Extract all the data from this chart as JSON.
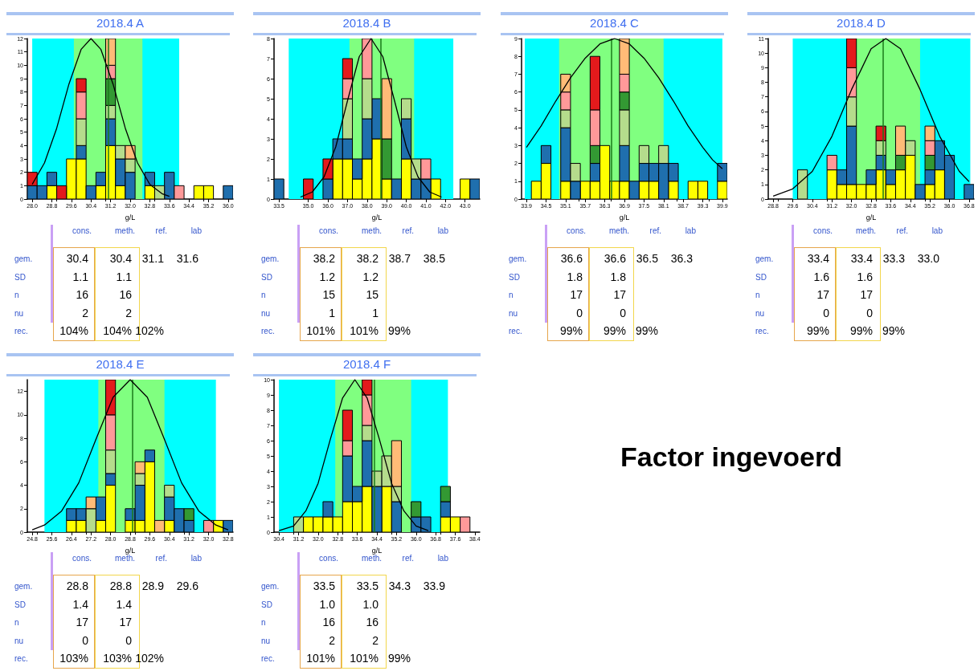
{
  "chart_data": [
    {
      "type": "bar",
      "title": "2018.4 A",
      "xlabel": "g/L",
      "stacked": true,
      "x": [
        28.0,
        28.4,
        28.8,
        29.2,
        29.6,
        30.0,
        30.4,
        30.8,
        31.2,
        31.6,
        32.0,
        32.4,
        32.8,
        33.2,
        33.6,
        34.0,
        34.4,
        34.8,
        35.2,
        35.6,
        36.0
      ],
      "xlim": [
        27.8,
        36.2
      ],
      "xticks": [
        {
          "value": 28,
          "label": "28.0"
        },
        28.8,
        29.6,
        30.4,
        31.2,
        {
          "value": 32,
          "label": "32.0"
        },
        32.8,
        33.6,
        34.4,
        35.2,
        {
          "value": 36,
          "label": "36.0"
        }
      ],
      "ylim": [
        0,
        12
      ],
      "yticks": [
        0,
        1,
        2,
        3,
        4,
        5,
        6,
        7,
        8,
        9,
        10,
        11,
        12
      ],
      "series": [
        {
          "color": "#ffff00",
          "values": [
            0,
            0,
            1,
            0,
            3,
            3,
            0,
            1,
            4,
            1,
            0,
            0,
            1,
            0,
            0,
            0,
            0,
            1,
            1,
            0,
            0
          ]
        },
        {
          "color": "#1f6fae",
          "values": [
            1,
            1,
            1,
            0,
            0,
            1,
            1,
            1,
            2,
            2,
            2,
            0,
            1,
            0,
            2,
            0,
            0,
            0,
            0,
            0,
            1
          ]
        },
        {
          "color": "#b5dc8c",
          "values": [
            0,
            0,
            0,
            0,
            0,
            2,
            0,
            0,
            1,
            1,
            1,
            0,
            0,
            1,
            0,
            0,
            0,
            0,
            0,
            0,
            0
          ]
        },
        {
          "color": "#339933",
          "values": [
            0,
            0,
            0,
            0,
            0,
            0,
            0,
            0,
            2,
            0,
            0,
            0,
            0,
            0,
            0,
            0,
            0,
            0,
            0,
            0,
            0
          ]
        },
        {
          "color": "#ff9999",
          "values": [
            0,
            0,
            0,
            0,
            0,
            2,
            0,
            0,
            1,
            0,
            0,
            0,
            0,
            0,
            0,
            1,
            0,
            0,
            0,
            0,
            0
          ]
        },
        {
          "color": "#e31a1c",
          "values": [
            1,
            0,
            0,
            1,
            0,
            1,
            0,
            0,
            0,
            0,
            0,
            0,
            0,
            0,
            0,
            0,
            0,
            0,
            0,
            0,
            0
          ]
        },
        {
          "color": "#ffbb77",
          "values": [
            0,
            0,
            0,
            0,
            0,
            0,
            0,
            0,
            2,
            0,
            1,
            0,
            0,
            0,
            0,
            0,
            0,
            0,
            0,
            0,
            0
          ]
        },
        {
          "type": "line",
          "color": "#000000",
          "marker": "none",
          "x": [
            28.0,
            28.5,
            29.0,
            29.5,
            30.0,
            30.4,
            30.8,
            31.3,
            31.8,
            32.3,
            32.8,
            33.3,
            33.6
          ],
          "values": [
            1.1,
            2.7,
            5.3,
            8.6,
            11.2,
            12,
            11.2,
            8.6,
            5.3,
            2.7,
            1.1,
            0.4,
            0.2
          ]
        }
      ],
      "bands": [
        {
          "axis": "x",
          "from": 28.0,
          "to": 34.0,
          "color": "#00ffff"
        },
        {
          "axis": "x",
          "from": 29.7,
          "to": 32.5,
          "color": "#80ff80"
        }
      ],
      "ref_lines": [
        {
          "axis": "x",
          "value": 31.1,
          "color": "#1a7a1a"
        }
      ],
      "annotations": [
        "cons. meth. ref. lab",
        "gem. 30.4 30.4 31.1 31.6",
        "SD 1.1 1.1",
        "n 16 16",
        "nu 2 2",
        "rec. 104% 104% 102%"
      ]
    },
    {
      "type": "bar",
      "title": "2018.4 B",
      "xlabel": "g/L",
      "stacked": true,
      "x": [
        33.5,
        34.0,
        34.5,
        35.0,
        35.5,
        36.0,
        36.5,
        37.0,
        37.5,
        38.0,
        38.5,
        39.0,
        39.5,
        40.0,
        40.5,
        41.0,
        41.5,
        42.0,
        42.5,
        43.0,
        43.5
      ],
      "xlim": [
        33.25,
        43.75
      ],
      "xticks": [
        33.5,
        {
          "value": 35,
          "label": "35.0"
        },
        {
          "value": 36,
          "label": "36.0"
        },
        {
          "value": 37,
          "label": "37.0"
        },
        {
          "value": 38,
          "label": "38.0"
        },
        {
          "value": 39,
          "label": "39.0"
        },
        {
          "value": 40,
          "label": "40.0"
        },
        {
          "value": 41,
          "label": "41.0"
        },
        {
          "value": 42,
          "label": "42.0"
        },
        {
          "value": 43,
          "label": "43.0"
        }
      ],
      "ylim": [
        0,
        8
      ],
      "yticks": [
        0,
        1,
        2,
        3,
        4,
        5,
        6,
        7,
        8
      ],
      "series": [
        {
          "color": "#ffff00",
          "values": [
            0,
            0,
            0,
            0,
            0,
            0,
            2,
            2,
            1,
            2,
            3,
            1,
            0,
            2,
            0,
            0,
            1,
            0,
            0,
            1,
            0
          ]
        },
        {
          "color": "#1f6fae",
          "values": [
            1,
            0,
            0,
            0,
            0,
            1,
            1,
            1,
            1,
            2,
            2,
            0,
            1,
            2,
            1,
            1,
            0,
            0,
            0,
            0,
            1
          ]
        },
        {
          "color": "#b5dc8c",
          "values": [
            0,
            0,
            0,
            0,
            0,
            0,
            0,
            2,
            0,
            2,
            0,
            0,
            0,
            1,
            1,
            0,
            0,
            0,
            0,
            0,
            0
          ]
        },
        {
          "color": "#339933",
          "values": [
            0,
            0,
            0,
            0,
            0,
            0,
            0,
            0,
            0,
            0,
            0,
            2,
            0,
            0,
            0,
            0,
            0,
            0,
            0,
            0,
            0
          ]
        },
        {
          "color": "#ff9999",
          "values": [
            0,
            0,
            0,
            0,
            0,
            0,
            0,
            1,
            0,
            2,
            0,
            0,
            0,
            0,
            0,
            1,
            0,
            0,
            0,
            0,
            0
          ]
        },
        {
          "color": "#e31a1c",
          "values": [
            0,
            0,
            0,
            1,
            0,
            1,
            0,
            1,
            0,
            0,
            0,
            0,
            0,
            0,
            0,
            0,
            0,
            0,
            0,
            0,
            0
          ]
        },
        {
          "color": "#ffbb77",
          "values": [
            0,
            0,
            0,
            0,
            0,
            0,
            0,
            0,
            0,
            0,
            0,
            3,
            0,
            0,
            0,
            0,
            0,
            0,
            0,
            0,
            0
          ]
        },
        {
          "type": "line",
          "color": "#000000",
          "marker": "none",
          "x": [
            34.6,
            35.2,
            35.8,
            36.4,
            37.0,
            37.6,
            38.2,
            38.8,
            39.4,
            40.0,
            40.6,
            41.2,
            41.8
          ],
          "values": [
            0.1,
            0.35,
            1.1,
            2.6,
            4.9,
            7.1,
            8,
            7.1,
            4.9,
            2.6,
            1.1,
            0.35,
            0.1
          ]
        }
      ],
      "bands": [
        {
          "axis": "x",
          "from": 34.0,
          "to": 42.4,
          "color": "#00ffff"
        },
        {
          "axis": "x",
          "from": 37.1,
          "to": 40.4,
          "color": "#80ff80"
        }
      ],
      "ref_lines": [
        {
          "axis": "x",
          "value": 38.7,
          "color": "#1a7a1a"
        }
      ],
      "annotations": [
        "cons. meth. ref. lab",
        "gem. 38.2 38.2 38.7 38.5",
        "SD 1.2 1.2",
        "n 15 15",
        "nu 1 1",
        "rec. 101% 101% 99%"
      ]
    },
    {
      "type": "bar",
      "title": "2018.4 C",
      "xlabel": "g/L",
      "stacked": true,
      "x": [
        33.9,
        34.2,
        34.5,
        34.8,
        35.1,
        35.4,
        35.7,
        36.0,
        36.3,
        36.6,
        36.9,
        37.2,
        37.5,
        37.8,
        38.1,
        38.4,
        38.7,
        39.0,
        39.3,
        39.6,
        39.9
      ],
      "xlim": [
        33.75,
        40.05
      ],
      "xticks": [
        33.9,
        34.5,
        35.1,
        35.7,
        36.3,
        36.9,
        37.5,
        38.1,
        38.7,
        39.3,
        39.9
      ],
      "ylim": [
        0,
        9
      ],
      "yticks": [
        0,
        1,
        2,
        3,
        4,
        5,
        6,
        7,
        8,
        9
      ],
      "series": [
        {
          "color": "#ffff00",
          "values": [
            0,
            1,
            2,
            0,
            1,
            0,
            1,
            1,
            3,
            1,
            1,
            0,
            1,
            1,
            0,
            1,
            0,
            1,
            1,
            0,
            1
          ]
        },
        {
          "color": "#1f6fae",
          "values": [
            0,
            0,
            1,
            0,
            3,
            1,
            0,
            1,
            0,
            0,
            2,
            1,
            1,
            1,
            2,
            1,
            0,
            0,
            0,
            0,
            1
          ]
        },
        {
          "color": "#b5dc8c",
          "values": [
            0,
            0,
            0,
            0,
            1,
            1,
            0,
            0,
            0,
            0,
            2,
            0,
            1,
            0,
            1,
            0,
            0,
            0,
            0,
            0,
            0
          ]
        },
        {
          "color": "#339933",
          "values": [
            0,
            0,
            0,
            0,
            0,
            0,
            0,
            1,
            0,
            0,
            1,
            0,
            0,
            0,
            0,
            0,
            0,
            0,
            0,
            0,
            0
          ]
        },
        {
          "color": "#ff9999",
          "values": [
            0,
            0,
            0,
            0,
            1,
            0,
            0,
            2,
            0,
            0,
            1,
            0,
            0,
            0,
            0,
            0,
            0,
            0,
            0,
            0,
            0
          ]
        },
        {
          "color": "#e31a1c",
          "values": [
            0,
            0,
            0,
            0,
            0,
            0,
            0,
            3,
            0,
            0,
            0,
            0,
            0,
            0,
            0,
            0,
            0,
            0,
            0,
            0,
            0
          ]
        },
        {
          "color": "#ffbb77",
          "values": [
            0,
            0,
            0,
            0,
            1,
            0,
            0,
            0,
            0,
            0,
            2,
            0,
            0,
            0,
            0,
            0,
            0,
            0,
            0,
            0,
            0
          ]
        },
        {
          "type": "line",
          "color": "#000000",
          "marker": "none",
          "x": [
            33.9,
            34.35,
            34.8,
            35.25,
            35.7,
            36.15,
            36.6,
            37.05,
            37.5,
            37.95,
            38.4,
            38.85,
            39.3,
            39.6,
            39.9
          ],
          "values": [
            2.9,
            4.1,
            5.5,
            6.8,
            7.9,
            8.7,
            9,
            8.7,
            7.9,
            6.8,
            5.5,
            4.1,
            2.9,
            2.2,
            1.7
          ]
        }
      ],
      "bands": [
        {
          "axis": "x",
          "from": 33.85,
          "to": 39.9,
          "color": "#00ffff"
        },
        {
          "axis": "x",
          "from": 34.9,
          "to": 38.1,
          "color": "#80ff80"
        }
      ],
      "ref_lines": [
        {
          "axis": "x",
          "value": 36.5,
          "color": "#1a7a1a"
        }
      ],
      "annotations": [
        "cons. meth. ref. lab",
        "gem. 36.6 36.6 36.5 36.3",
        "SD 1.8 1.8",
        "n 17 17",
        "nu 0 0",
        "rec. 99% 99% 99%"
      ]
    },
    {
      "type": "bar",
      "title": "2018.4 D",
      "xlabel": "g/L",
      "stacked": true,
      "x": [
        28.8,
        29.2,
        29.6,
        30.0,
        30.4,
        30.8,
        31.2,
        31.6,
        32.0,
        32.4,
        32.8,
        33.2,
        33.6,
        34.0,
        34.4,
        34.8,
        35.2,
        35.6,
        36.0,
        36.4,
        36.8
      ],
      "xlim": [
        28.6,
        37.0
      ],
      "xticks": [
        28.8,
        29.6,
        30.4,
        31.2,
        {
          "value": 32,
          "label": "32.0"
        },
        32.8,
        33.6,
        34.4,
        35.2,
        {
          "value": 36,
          "label": "36.0"
        },
        36.8
      ],
      "ylim": [
        0,
        11
      ],
      "yticks": [
        0,
        1,
        2,
        3,
        4,
        5,
        6,
        7,
        8,
        9,
        10,
        11
      ],
      "series": [
        {
          "color": "#ffff00",
          "values": [
            0,
            0,
            0,
            0,
            0,
            0,
            2,
            1,
            1,
            1,
            1,
            2,
            1,
            2,
            3,
            0,
            1,
            2,
            0,
            0,
            0
          ]
        },
        {
          "color": "#1f6fae",
          "values": [
            0,
            0,
            0,
            0,
            0,
            0,
            0,
            1,
            4,
            0,
            1,
            1,
            1,
            0,
            0,
            1,
            1,
            2,
            3,
            0,
            1
          ]
        },
        {
          "color": "#b5dc8c",
          "values": [
            0,
            0,
            0,
            2,
            0,
            0,
            0,
            0,
            2,
            0,
            0,
            1,
            0,
            0,
            1,
            0,
            0,
            0,
            0,
            0,
            0
          ]
        },
        {
          "color": "#339933",
          "values": [
            0,
            0,
            0,
            0,
            0,
            0,
            0,
            0,
            0,
            0,
            0,
            0,
            0,
            1,
            0,
            0,
            1,
            0,
            0,
            0,
            0
          ]
        },
        {
          "color": "#ff9999",
          "values": [
            0,
            0,
            0,
            0,
            0,
            0,
            1,
            0,
            2,
            0,
            0,
            0,
            0,
            0,
            0,
            0,
            1,
            0,
            0,
            0,
            0
          ]
        },
        {
          "color": "#e31a1c",
          "values": [
            0,
            0,
            0,
            0,
            0,
            0,
            0,
            0,
            2,
            0,
            0,
            1,
            0,
            0,
            0,
            0,
            0,
            0,
            0,
            0,
            0
          ]
        },
        {
          "color": "#ffbb77",
          "values": [
            0,
            0,
            0,
            0,
            0,
            0,
            0,
            0,
            0,
            0,
            0,
            0,
            0,
            2,
            0,
            0,
            1,
            0,
            0,
            0,
            0
          ]
        },
        {
          "type": "line",
          "color": "#000000",
          "marker": "none",
          "x": [
            28.8,
            29.6,
            30.4,
            31.2,
            32.0,
            32.8,
            33.4,
            34.0,
            34.8,
            35.6,
            36.4,
            36.8
          ],
          "values": [
            0.2,
            0.7,
            1.9,
            4.3,
            7.5,
            10.3,
            11,
            10.3,
            7.5,
            4.3,
            1.9,
            1.2
          ]
        }
      ],
      "bands": [
        {
          "axis": "x",
          "from": 29.6,
          "to": 36.85,
          "color": "#00ffff"
        },
        {
          "axis": "x",
          "from": 31.8,
          "to": 34.8,
          "color": "#80ff80"
        }
      ],
      "ref_lines": [
        {
          "axis": "x",
          "value": 33.3,
          "color": "#1a7a1a"
        }
      ],
      "annotations": [
        "cons. meth. ref. lab",
        "gem. 33.4 33.4 33.3 33.0",
        "SD 1.6 1.6",
        "n 17 17",
        "nu 0 0",
        "rec. 99% 99% 99%"
      ]
    },
    {
      "type": "bar",
      "title": "2018.4 E",
      "xlabel": "g/L",
      "stacked": true,
      "x": [
        24.8,
        25.2,
        25.6,
        26.0,
        26.4,
        26.8,
        27.2,
        27.6,
        28.0,
        28.4,
        28.8,
        29.2,
        29.6,
        30.0,
        30.4,
        30.8,
        31.2,
        31.6,
        32.0,
        32.4,
        32.8
      ],
      "xlim": [
        24.6,
        33.0
      ],
      "xticks": [
        24.8,
        25.6,
        26.4,
        27.2,
        {
          "value": 28,
          "label": "28.0"
        },
        28.8,
        29.6,
        30.4,
        31.2,
        {
          "value": 32,
          "label": "32.0"
        },
        32.8
      ],
      "ylim": [
        0,
        13
      ],
      "yticks": [
        0,
        2,
        4,
        6,
        8,
        10,
        12
      ],
      "series": [
        {
          "color": "#ffff00",
          "values": [
            0,
            0,
            0,
            0,
            1,
            1,
            0,
            1,
            4,
            0,
            1,
            1,
            6,
            0,
            1,
            0,
            0,
            0,
            0,
            1,
            0
          ]
        },
        {
          "color": "#1f6fae",
          "values": [
            0,
            0,
            0,
            0,
            1,
            1,
            0,
            2,
            1,
            0,
            1,
            3,
            1,
            0,
            2,
            2,
            1,
            0,
            0,
            0,
            1
          ]
        },
        {
          "color": "#b5dc8c",
          "values": [
            0,
            0,
            0,
            0,
            0,
            0,
            2,
            0,
            2,
            0,
            0,
            1,
            0,
            0,
            1,
            0,
            0,
            0,
            0,
            0,
            0
          ]
        },
        {
          "color": "#339933",
          "values": [
            0,
            0,
            0,
            0,
            0,
            0,
            0,
            0,
            0,
            0,
            0,
            0,
            0,
            0,
            0,
            0,
            1,
            0,
            0,
            0,
            0
          ]
        },
        {
          "color": "#ff9999",
          "values": [
            0,
            0,
            0,
            0,
            0,
            0,
            0,
            0,
            3,
            0,
            0,
            0,
            0,
            0,
            0,
            0,
            0,
            0,
            1,
            0,
            0
          ]
        },
        {
          "color": "#e31a1c",
          "values": [
            0,
            0,
            0,
            0,
            0,
            0,
            0,
            0,
            3,
            0,
            0,
            0,
            0,
            0,
            0,
            0,
            0,
            0,
            0,
            0,
            0
          ]
        },
        {
          "color": "#ffbb77",
          "values": [
            0,
            0,
            0,
            0,
            0,
            0,
            1,
            0,
            0,
            0,
            0,
            1,
            0,
            1,
            0,
            0,
            0,
            0,
            0,
            0,
            0
          ]
        },
        {
          "type": "line",
          "color": "#000000",
          "marker": "none",
          "x": [
            24.8,
            25.3,
            26.0,
            26.7,
            27.4,
            28.1,
            28.8,
            29.5,
            30.2,
            30.9,
            31.6,
            32.3,
            32.8
          ],
          "values": [
            0.2,
            0.6,
            1.8,
            4.2,
            7.9,
            11.5,
            13,
            11.5,
            7.9,
            4.2,
            1.8,
            0.6,
            0.2
          ]
        }
      ],
      "bands": [
        {
          "axis": "x",
          "from": 25.3,
          "to": 32.3,
          "color": "#00ffff"
        },
        {
          "axis": "x",
          "from": 27.5,
          "to": 30.2,
          "color": "#80ff80"
        }
      ],
      "ref_lines": [
        {
          "axis": "x",
          "value": 28.9,
          "color": "#1a7a1a"
        }
      ],
      "annotations": [
        "cons. meth. ref. lab",
        "gem. 28.8 28.8 28.9 29.6",
        "SD 1.4 1.4",
        "n 17 17",
        "nu 0 0",
        "rec. 103% 103% 102%"
      ]
    },
    {
      "type": "bar",
      "title": "2018.4 F",
      "xlabel": "g/L",
      "stacked": true,
      "x": [
        30.4,
        30.8,
        31.2,
        31.6,
        32.0,
        32.4,
        32.8,
        33.2,
        33.6,
        34.0,
        34.4,
        34.8,
        35.2,
        35.6,
        36.0,
        36.4,
        36.8,
        37.2,
        37.6,
        38.0,
        38.4
      ],
      "xlim": [
        30.2,
        38.6
      ],
      "xticks": [
        30.4,
        31.2,
        {
          "value": 32,
          "label": "32.0"
        },
        32.8,
        33.6,
        34.4,
        35.2,
        {
          "value": 36,
          "label": "36.0"
        },
        36.8,
        37.6,
        38.4
      ],
      "ylim": [
        0,
        10
      ],
      "yticks": [
        0,
        1,
        2,
        3,
        4,
        5,
        6,
        7,
        8,
        9,
        10
      ],
      "series": [
        {
          "color": "#ffff00",
          "values": [
            0,
            0,
            0,
            1,
            1,
            1,
            1,
            2,
            2,
            3,
            0,
            3,
            0,
            0,
            0,
            0,
            0,
            1,
            1,
            0,
            0
          ]
        },
        {
          "color": "#1f6fae",
          "values": [
            0,
            0,
            0,
            0,
            0,
            1,
            0,
            3,
            1,
            3,
            3,
            0,
            2,
            0,
            1,
            1,
            0,
            1,
            0,
            0,
            0
          ]
        },
        {
          "color": "#b5dc8c",
          "values": [
            0,
            0,
            1,
            0,
            0,
            0,
            0,
            0,
            0,
            1,
            1,
            2,
            1,
            0,
            0,
            0,
            0,
            0,
            0,
            0,
            0
          ]
        },
        {
          "color": "#339933",
          "values": [
            0,
            0,
            0,
            0,
            0,
            0,
            0,
            0,
            0,
            0,
            0,
            0,
            0,
            0,
            1,
            0,
            0,
            1,
            0,
            0,
            0
          ]
        },
        {
          "color": "#ff9999",
          "values": [
            0,
            0,
            0,
            0,
            0,
            0,
            0,
            1,
            0,
            2,
            0,
            0,
            0,
            0,
            0,
            0,
            0,
            0,
            0,
            1,
            0
          ]
        },
        {
          "color": "#e31a1c",
          "values": [
            0,
            0,
            0,
            0,
            0,
            0,
            0,
            2,
            0,
            1,
            0,
            0,
            0,
            0,
            0,
            0,
            0,
            0,
            0,
            0,
            0
          ]
        },
        {
          "color": "#ffbb77",
          "values": [
            0,
            0,
            0,
            0,
            0,
            0,
            0,
            0,
            0,
            0,
            0,
            0,
            3,
            0,
            0,
            0,
            0,
            0,
            0,
            0,
            0
          ]
        },
        {
          "type": "line",
          "color": "#000000",
          "marker": "none",
          "x": [
            30.4,
            31.0,
            31.5,
            32.0,
            32.5,
            33.0,
            33.5,
            34.0,
            34.5,
            35.0,
            35.5,
            36.0,
            36.5
          ],
          "values": [
            0.1,
            0.4,
            1.4,
            3.2,
            6.1,
            8.8,
            10,
            8.8,
            6.1,
            3.2,
            1.4,
            0.4,
            0.1
          ]
        }
      ],
      "bands": [
        {
          "axis": "x",
          "from": 30.4,
          "to": 37.3,
          "color": "#00ffff"
        },
        {
          "axis": "x",
          "from": 32.7,
          "to": 35.8,
          "color": "#80ff80"
        }
      ],
      "ref_lines": [
        {
          "axis": "x",
          "value": 34.3,
          "color": "#1a7a1a"
        }
      ],
      "annotations": [
        "cons. meth. ref. lab",
        "gem. 33.5 33.5 34.3 33.9",
        "SD 1.0 1.0",
        "n 16 16",
        "nu 2 2",
        "rec. 101% 101% 99%"
      ]
    },
    {
      "type": "other",
      "annotations": [
        "Factor ingevoerd"
      ]
    }
  ]
}
